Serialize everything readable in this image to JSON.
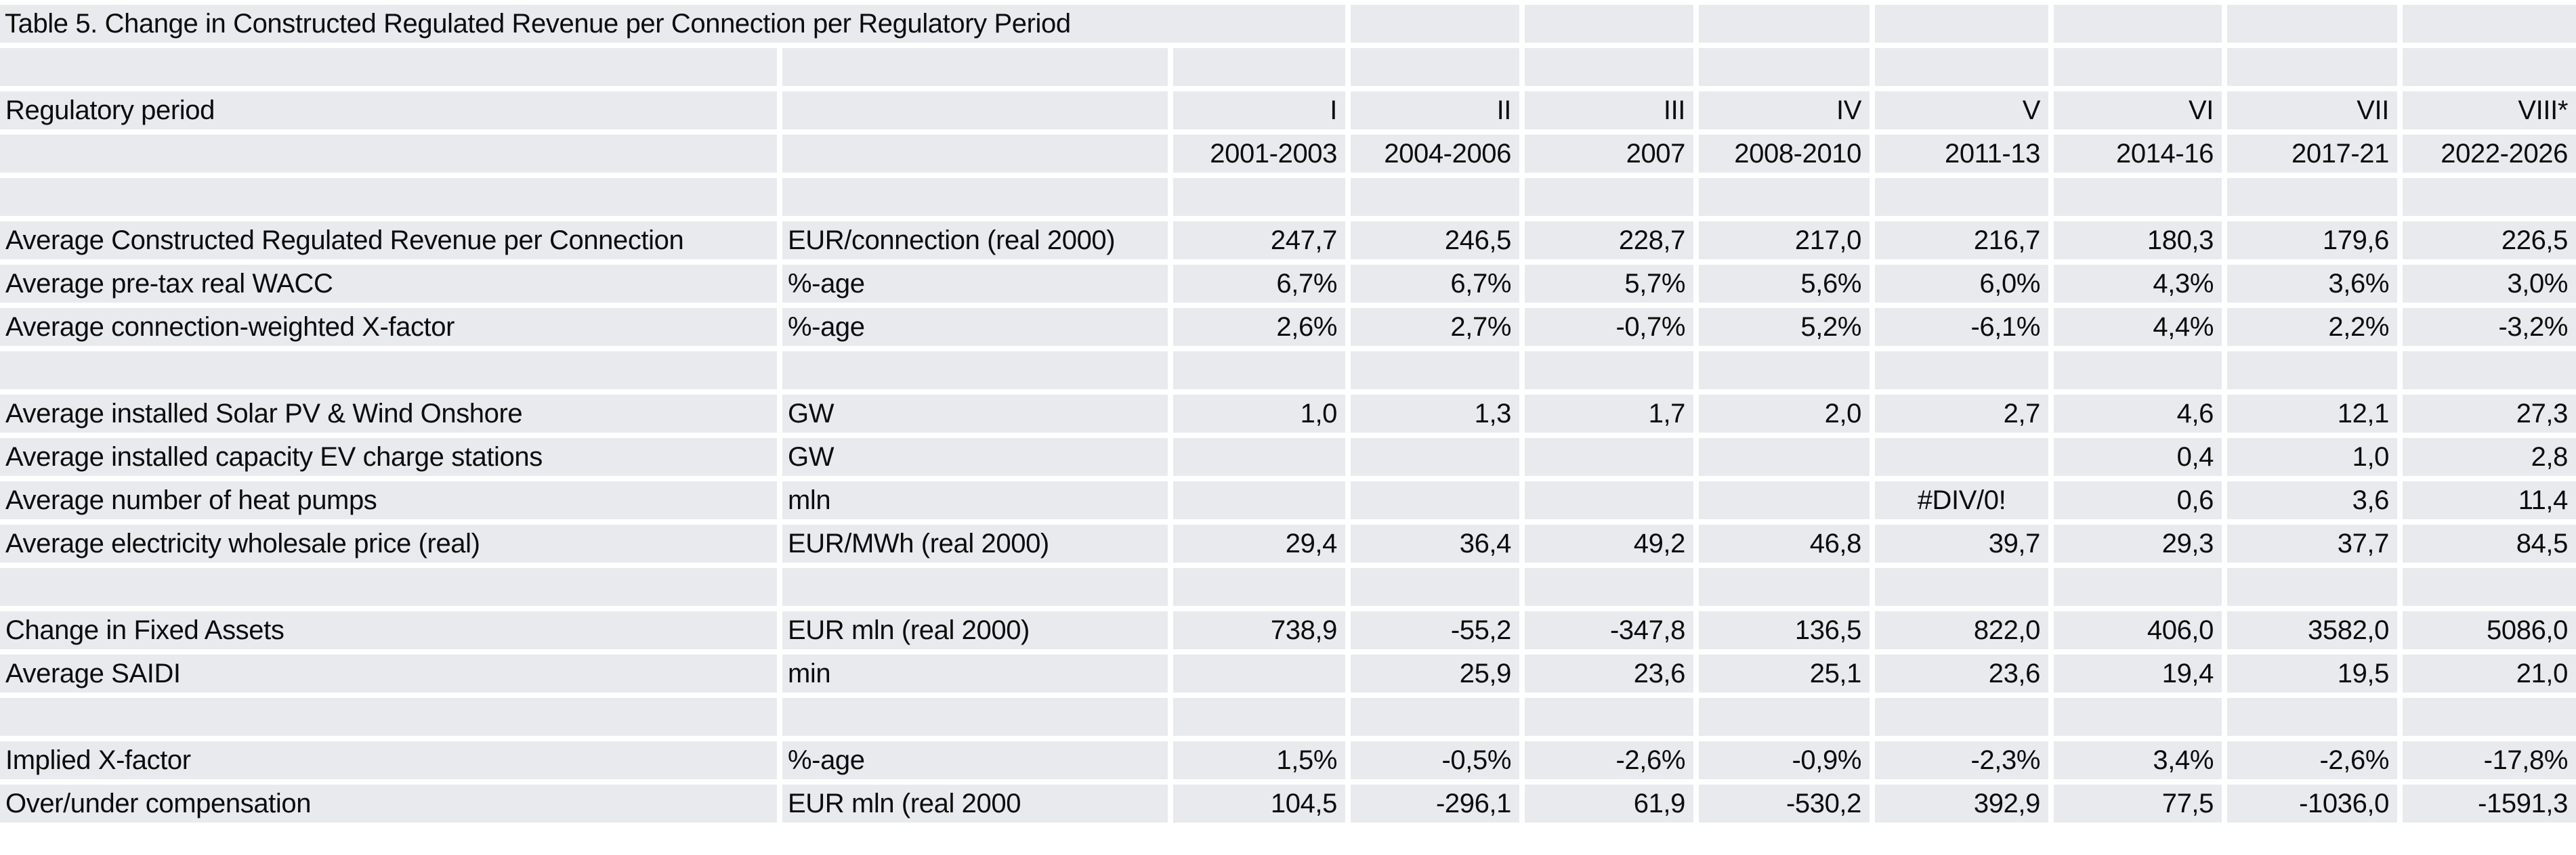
{
  "sheet": {
    "cell_fill_color": "#e8eaed",
    "gridline_color": "#ffffff",
    "text_color": "#0c0c0c"
  },
  "rows": [
    {
      "type": "title",
      "text": "Table 5. Change in Constructed Regulated Revenue per Connection per Regulatory Period"
    },
    {
      "type": "blank"
    },
    {
      "type": "header",
      "label": "Regulatory period",
      "unit": "",
      "values": [
        "I",
        "II",
        "III",
        "IV",
        "V",
        "VI",
        "VII",
        "VIII*"
      ]
    },
    {
      "type": "years",
      "label": "",
      "unit": "",
      "values": [
        "2001-2003",
        "2004-2006",
        "2007",
        "2008-2010",
        "2011-13",
        "2014-16",
        "2017-21",
        "2022-2026"
      ]
    },
    {
      "type": "blank"
    },
    {
      "type": "data",
      "label": "Average Constructed Regulated Revenue per Connection",
      "unit": "EUR/connection (real 2000)",
      "values": [
        "247,7",
        "246,5",
        "228,7",
        "217,0",
        "216,7",
        "180,3",
        "179,6",
        "226,5"
      ]
    },
    {
      "type": "data",
      "label": "Average pre-tax real WACC",
      "unit": "%-age",
      "values": [
        "6,7%",
        "6,7%",
        "5,7%",
        "5,6%",
        "6,0%",
        "4,3%",
        "3,6%",
        "3,0%"
      ]
    },
    {
      "type": "data",
      "label": "Average connection-weighted X-factor",
      "unit": "%-age",
      "values": [
        "2,6%",
        "2,7%",
        "-0,7%",
        "5,2%",
        "-6,1%",
        "4,4%",
        "2,2%",
        "-3,2%"
      ]
    },
    {
      "type": "blank"
    },
    {
      "type": "data",
      "label": "Average installed Solar PV & Wind Onshore",
      "unit": "GW",
      "values": [
        "1,0",
        "1,3",
        "1,7",
        "2,0",
        "2,7",
        "4,6",
        "12,1",
        "27,3"
      ]
    },
    {
      "type": "data",
      "label": "Average installed capacity EV charge stations",
      "unit": "GW",
      "values": [
        "",
        "",
        "",
        "",
        "",
        "0,4",
        "1,0",
        "2,8"
      ]
    },
    {
      "type": "data",
      "label": "Average number of heat pumps",
      "unit": "mln",
      "values": [
        "",
        "",
        "",
        "",
        "#DIV/0!",
        "0,6",
        "3,6",
        "11,4"
      ]
    },
    {
      "type": "data",
      "label": "Average electricity wholesale price (real)",
      "unit": "EUR/MWh (real 2000)",
      "values": [
        "29,4",
        "36,4",
        "49,2",
        "46,8",
        "39,7",
        "29,3",
        "37,7",
        "84,5"
      ]
    },
    {
      "type": "blank"
    },
    {
      "type": "data",
      "label": "Change in Fixed Assets",
      "unit": "EUR mln (real 2000)",
      "values": [
        "738,9",
        "-55,2",
        "-347,8",
        "136,5",
        "822,0",
        "406,0",
        "3582,0",
        "5086,0"
      ]
    },
    {
      "type": "data",
      "label": "Average SAIDI",
      "unit": "min",
      "values": [
        "",
        "25,9",
        "23,6",
        "25,1",
        "23,6",
        "19,4",
        "19,5",
        "21,0"
      ]
    },
    {
      "type": "blank"
    },
    {
      "type": "data",
      "label": "Implied X-factor",
      "unit": "%-age",
      "values": [
        "1,5%",
        "-0,5%",
        "-2,6%",
        "-0,9%",
        "-2,3%",
        "3,4%",
        "-2,6%",
        "-17,8%"
      ]
    },
    {
      "type": "data",
      "label": "Over/under compensation",
      "unit": "EUR mln (real 2000",
      "values": [
        "104,5",
        "-296,1",
        "61,9",
        "-530,2",
        "392,9",
        "77,5",
        "-1036,0",
        "-1591,3"
      ]
    }
  ]
}
